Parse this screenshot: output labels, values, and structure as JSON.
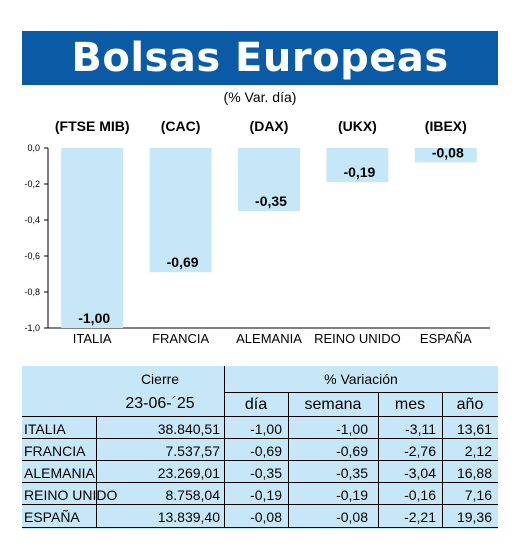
{
  "header": {
    "title": "Bolsas Europeas",
    "subtitle": "(% Var. día)"
  },
  "chart_data": {
    "type": "bar",
    "categories": [
      "ITALIA",
      "FRANCIA",
      "ALEMANIA",
      "REINO UNIDO",
      "ESPAÑA"
    ],
    "index_labels": [
      "(FTSE MIB)",
      "(CAC)",
      "(DAX)",
      "(UKX)",
      "(IBEX)"
    ],
    "values": [
      -1.0,
      -0.69,
      -0.35,
      -0.19,
      -0.08
    ],
    "value_labels": [
      "-1,00",
      "-0,69",
      "-0,35",
      "-0,19",
      "-0,08"
    ],
    "ylim": [
      -1.0,
      0.0
    ],
    "yticks": [
      0.0,
      -0.2,
      -0.4,
      -0.6,
      -0.8,
      -1.0
    ],
    "ytick_labels": [
      "0,0",
      "-0,2",
      "-0,4",
      "-0,6",
      "-0,8",
      "-1,0"
    ],
    "bar_color": "#c6e7f7",
    "grid": false,
    "title": "",
    "xlabel": "",
    "ylabel": ""
  },
  "table": {
    "header_cierre": "Cierre",
    "header_variacion": "% Variación",
    "date": "23-06-´25",
    "columns": [
      "día",
      "semana",
      "mes",
      "año"
    ],
    "rows": [
      {
        "name": "ITALIA",
        "cierre": "38.840,51",
        "dia": "-1,00",
        "semana": "-1,00",
        "mes": "-3,11",
        "ano": "13,61"
      },
      {
        "name": "FRANCIA",
        "cierre": "7.537,57",
        "dia": "-0,69",
        "semana": "-0,69",
        "mes": "-2,76",
        "ano": "2,12"
      },
      {
        "name": "ALEMANIA",
        "cierre": "23.269,01",
        "dia": "-0,35",
        "semana": "-0,35",
        "mes": "-3,04",
        "ano": "16,88"
      },
      {
        "name": "REINO UNIDO",
        "cierre": "8.758,04",
        "dia": "-0,19",
        "semana": "-0,19",
        "mes": "-0,16",
        "ano": "7,16"
      },
      {
        "name": "ESPAÑA",
        "cierre": "13.839,40",
        "dia": "-0,08",
        "semana": "-0,08",
        "mes": "-2,21",
        "ano": "19,36"
      }
    ],
    "background": "#c6e7f7"
  }
}
